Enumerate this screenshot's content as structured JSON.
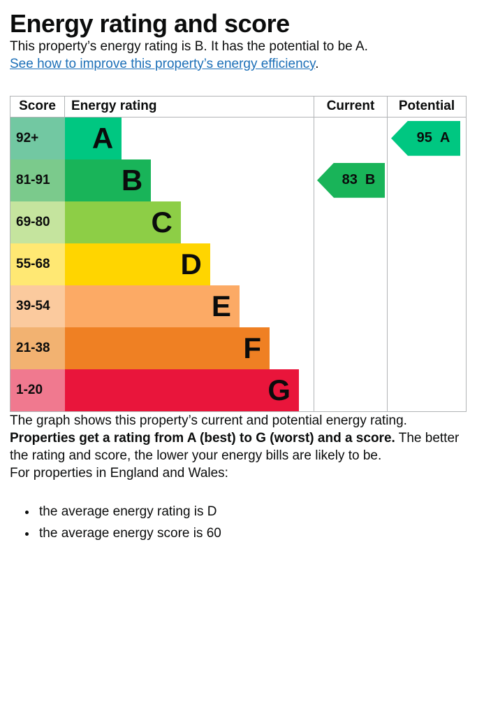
{
  "header": {
    "title": "Energy rating and score"
  },
  "intro": {
    "text": "This property’s energy rating is B. It has the potential to be A.",
    "link": "See how to improve this property’s energy efficiency",
    "link_suffix": "."
  },
  "chart_data": {
    "type": "bar",
    "variant": "epc-energy-rating-graph",
    "columns": {
      "score": "Score",
      "rating": "Energy rating",
      "current": "Current",
      "potential": "Potential"
    },
    "bands": [
      {
        "letter": "A",
        "score_range": "92+",
        "color": "#00c781",
        "score_color": "#72c8a2",
        "bar_pct": 22.8
      },
      {
        "letter": "B",
        "score_range": "81-91",
        "color": "#19b459",
        "score_color": "#7bca8c",
        "bar_pct": 34.6
      },
      {
        "letter": "C",
        "score_range": "69-80",
        "color": "#8dce46",
        "score_color": "#c5e49e",
        "bar_pct": 46.6
      },
      {
        "letter": "D",
        "score_range": "55-68",
        "color": "#ffd500",
        "score_color": "#ffe873",
        "bar_pct": 58.4
      },
      {
        "letter": "E",
        "score_range": "39-54",
        "color": "#fcaa65",
        "score_color": "#fbca9e",
        "bar_pct": 70.2
      },
      {
        "letter": "F",
        "score_range": "21-38",
        "color": "#ef8023",
        "score_color": "#f2b271",
        "bar_pct": 82.3
      },
      {
        "letter": "G",
        "score_range": "1-20",
        "color": "#e9153b",
        "score_color": "#f0798f",
        "bar_pct": 94.1
      }
    ],
    "current": {
      "value": "83",
      "letter": "B",
      "band": "B",
      "color": "#19b459"
    },
    "potential": {
      "value": "95",
      "letter": "A",
      "band": "A",
      "color": "#00c781"
    },
    "border_color": "#b1b4b6"
  },
  "footer": {
    "caption": "The graph shows this property’s current and potential energy rating.",
    "explain_bold": "Properties get a rating from A (best) to G (worst) and a score.",
    "explain_rest": " The better the rating and score, the lower your energy bills are likely to be.",
    "region_heading": "For properties in England and Wales:",
    "bullets": [
      "the average energy rating is D",
      "the average energy score is 60"
    ]
  }
}
